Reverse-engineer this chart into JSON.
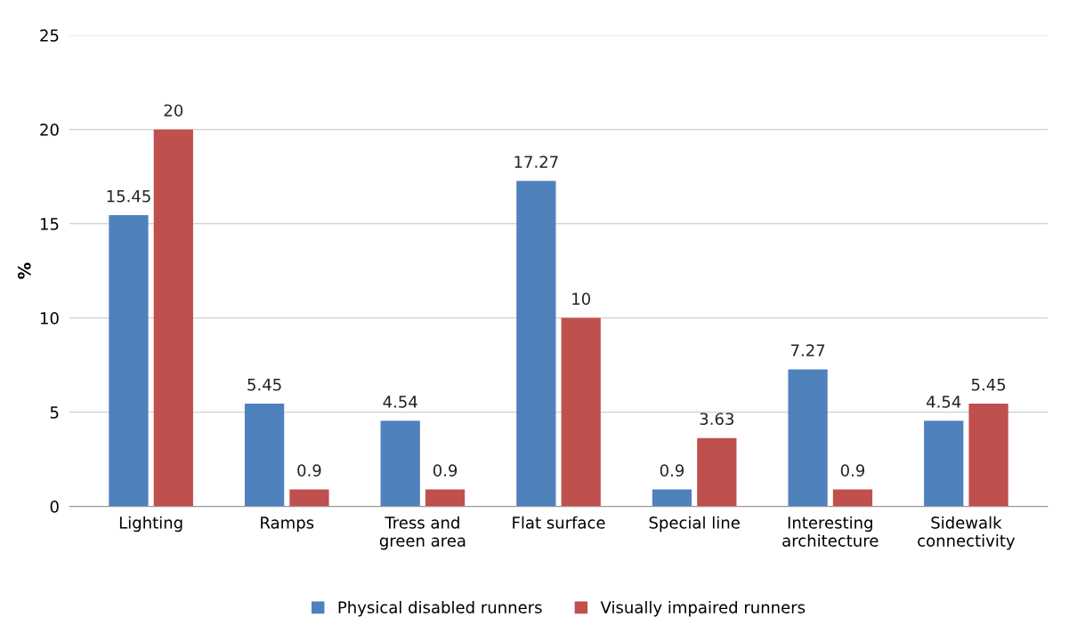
{
  "chart_data": {
    "type": "bar",
    "ylabel": "%",
    "categories": [
      "Lighting",
      "Ramps",
      "Tress and\ngreen area",
      "Flat surface",
      "Special line",
      "Interesting\narchitecture",
      "Sidewalk\nconnectivity"
    ],
    "series": [
      {
        "name": "Physical disabled runners",
        "color": "#4f81bd",
        "values": [
          15.45,
          5.45,
          4.54,
          17.27,
          0.9,
          7.27,
          4.54
        ]
      },
      {
        "name": "Visually impaired runners",
        "color": "#c0504d",
        "values": [
          20,
          0.9,
          0.9,
          10,
          3.63,
          0.9,
          5.45
        ]
      }
    ],
    "ylim": [
      0,
      25
    ],
    "yticks": [
      0,
      5,
      10,
      15,
      20,
      25
    ],
    "grid": "y",
    "legend": "bottom",
    "data_labels": true
  }
}
